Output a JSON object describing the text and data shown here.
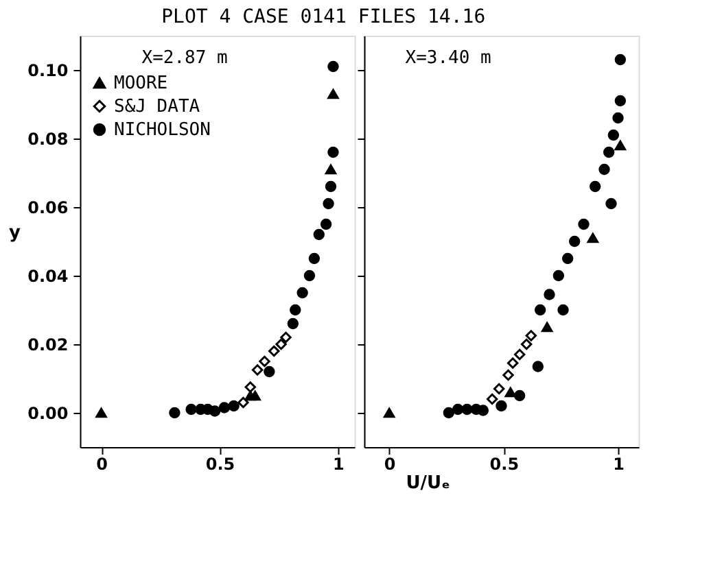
{
  "chart_data": [
    {
      "type": "scatter",
      "title": "PLOT 4 CASE 0141 FILES 14.16",
      "xlabel": "U/Uₑ",
      "ylabel": "y",
      "annotations": [
        "X=2.87 m"
      ],
      "legend": "top left",
      "grid": false,
      "xlim": [
        -0.09,
        1.07
      ],
      "xticks": [
        0,
        0.5,
        1
      ],
      "ylim": [
        -0.01,
        0.11
      ],
      "yticks": [
        {
          "value": 0,
          "label": "0.00"
        },
        {
          "value": 0.02,
          "label": "0.02"
        },
        {
          "value": 0.04,
          "label": "0.04"
        },
        {
          "value": 0.06,
          "label": "0.06"
        },
        {
          "value": 0.08,
          "label": "0.08"
        },
        {
          "value": 0.1,
          "label": "0.10"
        }
      ],
      "series": [
        {
          "name": "MOORE",
          "color": "#000000",
          "marker": "triangle",
          "x": [
            0,
            0.63,
            0.65,
            0.97,
            0.98
          ],
          "values": [
            0,
            0.005,
            0.005,
            0.071,
            0.093
          ]
        },
        {
          "name": "S&J DATA",
          "color": "#000000",
          "marker": "diamond",
          "x": [
            0.6,
            0.63,
            0.66,
            0.69,
            0.73,
            0.76,
            0.78
          ],
          "values": [
            0.003,
            0.0075,
            0.0125,
            0.015,
            0.018,
            0.02,
            0.022
          ]
        },
        {
          "name": "NICHOLSON",
          "color": "#000000",
          "marker": "circle",
          "x": [
            0.31,
            0.38,
            0.42,
            0.45,
            0.48,
            0.52,
            0.56,
            0.71,
            0.81,
            0.82,
            0.85,
            0.88,
            0.9,
            0.92,
            0.95,
            0.96,
            0.97,
            0.98,
            0.98
          ],
          "values": [
            0,
            0.001,
            0.001,
            0.001,
            0.0005,
            0.0015,
            0.002,
            0.012,
            0.026,
            0.03,
            0.035,
            0.04,
            0.045,
            0.052,
            0.055,
            0.061,
            0.066,
            0.076,
            0.101
          ]
        }
      ]
    },
    {
      "type": "scatter",
      "annotations": [
        "X=3.40 m"
      ],
      "legend": false,
      "grid": false,
      "tick_labels": "x",
      "xlim": [
        -0.11,
        1.09
      ],
      "xticks": [
        0,
        0.5,
        1
      ],
      "ylim": [
        -0.01,
        0.11
      ],
      "yticks": [
        0,
        0.02,
        0.04,
        0.06,
        0.08,
        0.1
      ],
      "series": [
        {
          "name": "MOORE",
          "color": "#000000",
          "marker": "triangle",
          "x": [
            0,
            0.53,
            0.69,
            0.89,
            1.01
          ],
          "values": [
            0,
            0.006,
            0.025,
            0.051,
            0.078
          ]
        },
        {
          "name": "S&J DATA",
          "color": "#000000",
          "marker": "diamond",
          "x": [
            0.45,
            0.48,
            0.52,
            0.54,
            0.57,
            0.6,
            0.62
          ],
          "values": [
            0.004,
            0.007,
            0.011,
            0.0145,
            0.017,
            0.02,
            0.0225
          ]
        },
        {
          "name": "NICHOLSON",
          "color": "#000000",
          "marker": "circle",
          "x": [
            0.26,
            0.3,
            0.34,
            0.38,
            0.41,
            0.49,
            0.57,
            0.65,
            0.66,
            0.7,
            0.74,
            0.76,
            0.78,
            0.81,
            0.85,
            0.9,
            0.94,
            0.96,
            0.97,
            0.98,
            1.0,
            1.01,
            1.01
          ],
          "values": [
            0,
            0.001,
            0.001,
            0.001,
            0.0007,
            0.002,
            0.005,
            0.0135,
            0.03,
            0.0345,
            0.04,
            0.03,
            0.045,
            0.05,
            0.055,
            0.066,
            0.071,
            0.076,
            0.061,
            0.081,
            0.086,
            0.091,
            0.103
          ]
        }
      ]
    }
  ]
}
